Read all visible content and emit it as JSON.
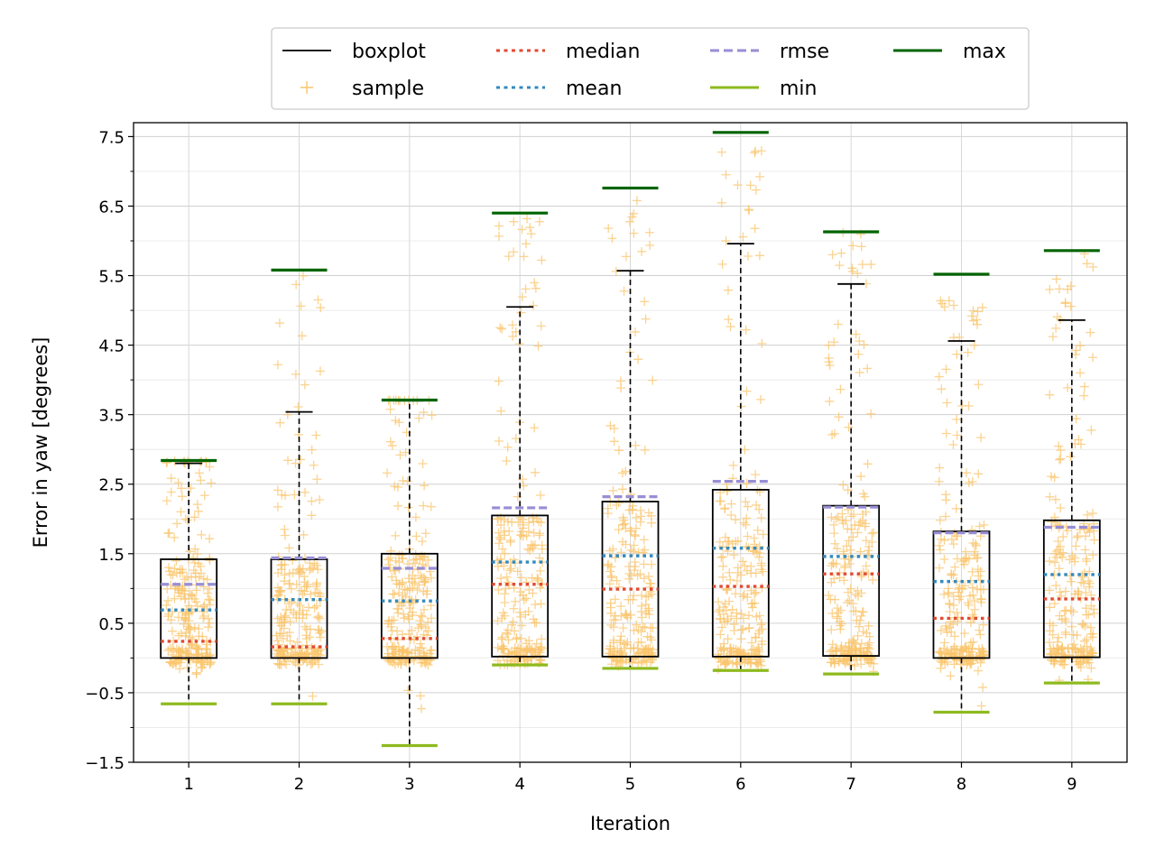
{
  "chart_data": {
    "type": "boxplot",
    "title": "",
    "xlabel": "Iteration",
    "ylabel": "Error in yaw [degrees]",
    "ylim": [
      -1.5,
      7.7
    ],
    "xlim": [
      0.5,
      9.5
    ],
    "yticks": [
      -1.5,
      -0.5,
      0.5,
      1.5,
      2.5,
      3.5,
      4.5,
      5.5,
      6.5,
      7.5
    ],
    "ytick_labels": [
      "−1.5",
      "−0.5",
      "0.5",
      "1.5",
      "2.5",
      "3.5",
      "4.5",
      "5.5",
      "6.5",
      "7.5"
    ],
    "categories": [
      "1",
      "2",
      "3",
      "4",
      "5",
      "6",
      "7",
      "8",
      "9"
    ],
    "grid": true,
    "legend_position": "top-center",
    "legend": [
      {
        "key": "boxplot",
        "label": "boxplot",
        "style": "line",
        "color": "#000000"
      },
      {
        "key": "sample",
        "label": "sample",
        "style": "plus",
        "color": "#f9c46b"
      },
      {
        "key": "median",
        "label": "median",
        "style": "dotted",
        "color": "#e24a33"
      },
      {
        "key": "mean",
        "label": "mean",
        "style": "dotted",
        "color": "#348abd"
      },
      {
        "key": "rmse",
        "label": "rmse",
        "style": "dashed",
        "color": "#988ed5"
      },
      {
        "key": "min",
        "label": "min",
        "style": "line",
        "color": "#8eba1e"
      },
      {
        "key": "max",
        "label": "max",
        "style": "line",
        "color": "#006400"
      }
    ],
    "series": [
      {
        "x": 1,
        "q1": 0.0,
        "q3": 1.42,
        "whisker_low": -0.66,
        "whisker_high": 2.8,
        "median": 0.24,
        "mean": 0.69,
        "rmse": 1.06,
        "min": -0.66,
        "max": 2.84
      },
      {
        "x": 2,
        "q1": 0.0,
        "q3": 1.42,
        "whisker_low": -0.66,
        "whisker_high": 3.54,
        "median": 0.16,
        "mean": 0.84,
        "rmse": 1.44,
        "min": -0.66,
        "max": 5.58
      },
      {
        "x": 3,
        "q1": 0.0,
        "q3": 1.5,
        "whisker_low": -1.26,
        "whisker_high": 3.7,
        "median": 0.28,
        "mean": 0.82,
        "rmse": 1.29,
        "min": -1.26,
        "max": 3.71
      },
      {
        "x": 4,
        "q1": 0.02,
        "q3": 2.05,
        "whisker_low": -0.1,
        "whisker_high": 5.05,
        "median": 1.06,
        "mean": 1.38,
        "rmse": 2.16,
        "min": -0.1,
        "max": 6.4
      },
      {
        "x": 5,
        "q1": 0.02,
        "q3": 2.25,
        "whisker_low": -0.15,
        "whisker_high": 5.57,
        "median": 0.99,
        "mean": 1.47,
        "rmse": 2.32,
        "min": -0.15,
        "max": 6.76
      },
      {
        "x": 6,
        "q1": 0.02,
        "q3": 2.42,
        "whisker_low": -0.18,
        "whisker_high": 5.96,
        "median": 1.03,
        "mean": 1.58,
        "rmse": 2.54,
        "min": -0.18,
        "max": 7.56
      },
      {
        "x": 7,
        "q1": 0.03,
        "q3": 2.19,
        "whisker_low": -0.23,
        "whisker_high": 5.38,
        "median": 1.21,
        "mean": 1.46,
        "rmse": 2.17,
        "min": -0.23,
        "max": 6.13
      },
      {
        "x": 8,
        "q1": 0.0,
        "q3": 1.82,
        "whisker_low": -0.78,
        "whisker_high": 4.56,
        "median": 0.57,
        "mean": 1.1,
        "rmse": 1.8,
        "min": -0.78,
        "max": 5.52
      },
      {
        "x": 9,
        "q1": 0.01,
        "q3": 1.98,
        "whisker_low": -0.36,
        "whisker_high": 4.86,
        "median": 0.85,
        "mean": 1.2,
        "rmse": 1.88,
        "min": -0.36,
        "max": 5.86
      }
    ]
  }
}
